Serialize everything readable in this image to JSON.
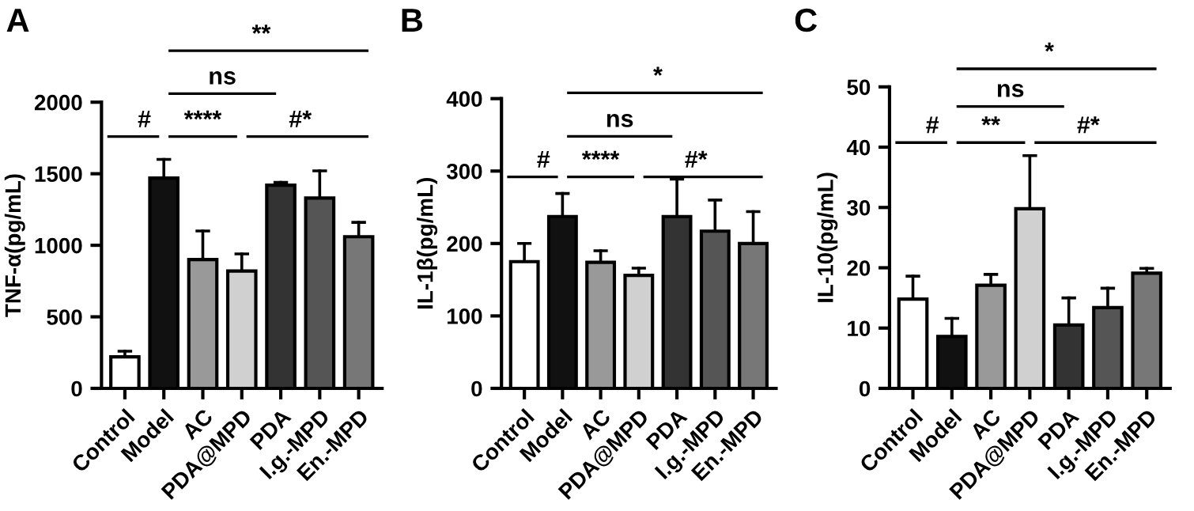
{
  "chart_data": [
    {
      "type": "bar",
      "title": "A",
      "ylabel": "TNF-α(pg/mL)",
      "categories": [
        "Control",
        "Model",
        "AC",
        "PDA@MPD",
        "PDA",
        "I.g.-MPD",
        "En.-MPD"
      ],
      "values": [
        220,
        1470,
        900,
        820,
        1420,
        1330,
        1060
      ],
      "errors": [
        [
          220,
          260
        ],
        [
          1470,
          1600
        ],
        [
          900,
          1100
        ],
        [
          820,
          940
        ],
        [
          1420,
          1440
        ],
        [
          1330,
          1520
        ],
        [
          1060,
          1160
        ]
      ],
      "colors": [
        "#ffffff",
        "#111111",
        "#999999",
        "#d0d0d0",
        "#333333",
        "#555555",
        "#777777"
      ],
      "ylim": [
        0,
        2000
      ],
      "yticks": [
        0,
        500,
        1000,
        1500,
        2000
      ],
      "grid": false,
      "annotations": [
        "#",
        "****",
        "#*",
        "ns",
        "**"
      ]
    },
    {
      "type": "bar",
      "title": "B",
      "ylabel": "IL-1β(pg/mL)",
      "categories": [
        "Control",
        "Model",
        "AC",
        "PDA@MPD",
        "PDA",
        "I.g.-MPD",
        "En.-MPD"
      ],
      "values": [
        175,
        237,
        174,
        156,
        237,
        217,
        200
      ],
      "errors": [
        [
          175,
          200
        ],
        [
          237,
          269
        ],
        [
          174,
          190
        ],
        [
          156,
          166
        ],
        [
          237,
          289
        ],
        [
          217,
          260
        ],
        [
          200,
          244
        ]
      ],
      "colors": [
        "#ffffff",
        "#111111",
        "#999999",
        "#d0d0d0",
        "#333333",
        "#555555",
        "#777777"
      ],
      "ylim": [
        0,
        400
      ],
      "yticks": [
        0,
        100,
        200,
        300,
        400
      ],
      "grid": false,
      "annotations": [
        "#",
        "****",
        "#*",
        "ns",
        "*"
      ]
    },
    {
      "type": "bar",
      "title": "C",
      "ylabel": "IL-10(pg/mL)",
      "categories": [
        "Control",
        "Model",
        "AC",
        "PDA@MPD",
        "PDA",
        "I.g.-MPD",
        "En.-MPD"
      ],
      "values": [
        14.8,
        8.6,
        17.1,
        29.8,
        10.5,
        13.4,
        19.1
      ],
      "errors": [
        [
          14.8,
          18.6
        ],
        [
          8.6,
          11.6
        ],
        [
          17.1,
          18.9
        ],
        [
          29.8,
          38.6
        ],
        [
          10.5,
          15.0
        ],
        [
          13.4,
          16.6
        ],
        [
          19.1,
          19.9
        ]
      ],
      "colors": [
        "#ffffff",
        "#111111",
        "#999999",
        "#d0d0d0",
        "#333333",
        "#555555",
        "#777777"
      ],
      "ylim": [
        0,
        50
      ],
      "yticks": [
        0,
        10,
        20,
        30,
        40,
        50
      ],
      "grid": false,
      "annotations": [
        "#",
        "**",
        "#*",
        "ns",
        "*"
      ]
    }
  ]
}
